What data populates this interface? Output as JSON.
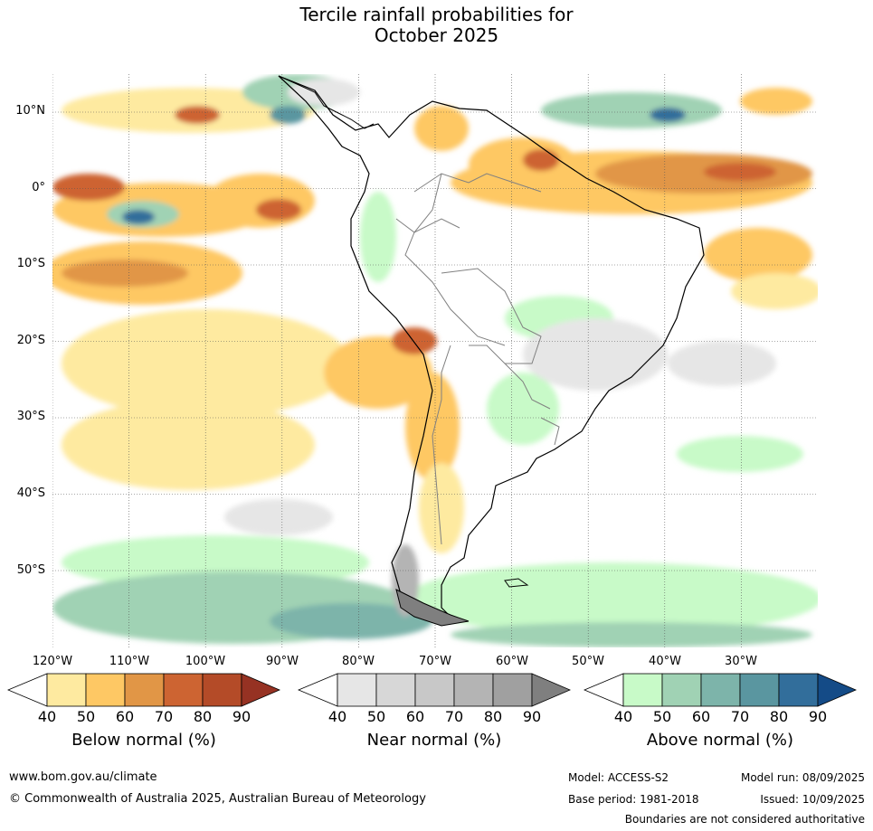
{
  "title": {
    "line1": "Tercile rainfall probabilities for",
    "line2": "October 2025"
  },
  "axes": {
    "lat_labels": [
      "10°N",
      "0°",
      "10°S",
      "20°S",
      "30°S",
      "40°S",
      "50°S"
    ],
    "lon_labels": [
      "120°W",
      "110°W",
      "100°W",
      "90°W",
      "80°W",
      "70°W",
      "60°W",
      "50°W",
      "40°W",
      "30°W"
    ],
    "grid": "dotted"
  },
  "colorbars": [
    {
      "title": "Below normal (%)",
      "ticks": [
        "40",
        "50",
        "60",
        "70",
        "80",
        "90"
      ],
      "colors": [
        "#ffffff",
        "#feeaa0",
        "#fec864",
        "#e19646",
        "#cd6432",
        "#b44b28",
        "#963223"
      ]
    },
    {
      "title": "Near normal (%)",
      "ticks": [
        "40",
        "50",
        "60",
        "70",
        "80",
        "90"
      ],
      "colors": [
        "#ffffff",
        "#e6e6e6",
        "#d7d7d7",
        "#c8c8c8",
        "#b4b4b4",
        "#a0a0a0",
        "#7f7f7f"
      ]
    },
    {
      "title": "Above normal (%)",
      "ticks": [
        "40",
        "50",
        "60",
        "70",
        "80",
        "90"
      ],
      "colors": [
        "#ffffff",
        "#c8fac8",
        "#a0d2b4",
        "#7db4aa",
        "#5a96a0",
        "#326e9b",
        "#144b87"
      ]
    }
  ],
  "footer": {
    "website": "www.bom.gov.au/climate",
    "copyright": "© Commonwealth of Australia 2025, Australian Bureau of Meteorology",
    "model": "Model: ACCESS-S2",
    "model_run": "Model run: 08/09/2025",
    "base_period": "Base period: 1981-2018",
    "issued": "Issued: 10/09/2025",
    "disclaimer": "Boundaries are not considered authoritative"
  }
}
